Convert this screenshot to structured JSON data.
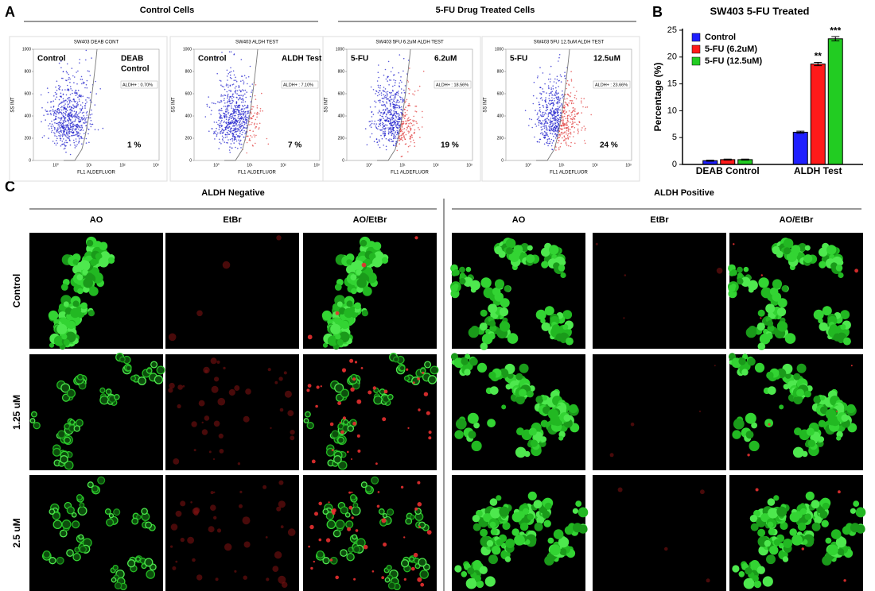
{
  "panel_a": {
    "letter": "A",
    "groups": [
      "Control Cells",
      "5-FU Drug Treated Cells"
    ],
    "y_axis_label": "SS INT",
    "x_axis_label": "FL1 ALDEFLUOR",
    "yticks": [
      0,
      200,
      400,
      600,
      800,
      1000
    ],
    "xticks": [
      "10⁰",
      "10¹",
      "10²",
      "10³"
    ],
    "plots": [
      {
        "title": "SW403 DEAB CONT",
        "left_label": "Control",
        "right_label": [
          "DEAB",
          "Control"
        ],
        "gate_label": "ALDH+ : 0.70%",
        "percent": "1 %"
      },
      {
        "title": "SW403 ALDH TEST",
        "left_label": "Control",
        "right_label": [
          "ALDH Test"
        ],
        "gate_label": "ALDH+ : 7.10%",
        "percent": "7 %"
      },
      {
        "title": "SW403 5FU 6.2uM ALDH TEST",
        "left_label": "5-FU",
        "right_label": [
          "6.2uM"
        ],
        "gate_label": "ALDH+ : 18.56%",
        "percent": "19 %"
      },
      {
        "title": "SW403 5FU 12.5uM ALDH TEST",
        "left_label": "5-FU",
        "right_label": [
          "12.5uM"
        ],
        "gate_label": "ALDH+ : 23.66%",
        "percent": "24 %"
      }
    ]
  },
  "chart_data": {
    "type": "bar",
    "letter": "B",
    "title": "SW403 5-FU Treated",
    "y_label": "Percentage (%)",
    "categories": [
      "DEAB Control",
      "ALDH Test"
    ],
    "ylim": [
      0,
      25
    ],
    "yticks": [
      0,
      5,
      10,
      15,
      20,
      25
    ],
    "legend": "top-left",
    "series": [
      {
        "name": "Control",
        "color": "#1f1fff",
        "values": [
          0.7,
          6.0
        ],
        "errors": [
          0.1,
          0.2
        ],
        "annotations": [
          null,
          null
        ]
      },
      {
        "name": "5-FU (6.2uM)",
        "color": "#ff1a1a",
        "values": [
          0.9,
          18.7
        ],
        "errors": [
          0.1,
          0.3
        ],
        "annotations": [
          null,
          "**"
        ]
      },
      {
        "name": "5-FU (12.5uM)",
        "color": "#22cc22",
        "values": [
          0.9,
          23.4
        ],
        "errors": [
          0.1,
          0.4
        ],
        "annotations": [
          null,
          "***"
        ]
      }
    ]
  },
  "panel_c": {
    "letter": "C",
    "groups": [
      "ALDH Negative",
      "ALDH Positive"
    ],
    "columns": [
      "AO",
      "EtBr",
      "AO/EtBr"
    ],
    "rows": [
      "Control",
      "1.25 uM",
      "2.5 uM"
    ]
  }
}
